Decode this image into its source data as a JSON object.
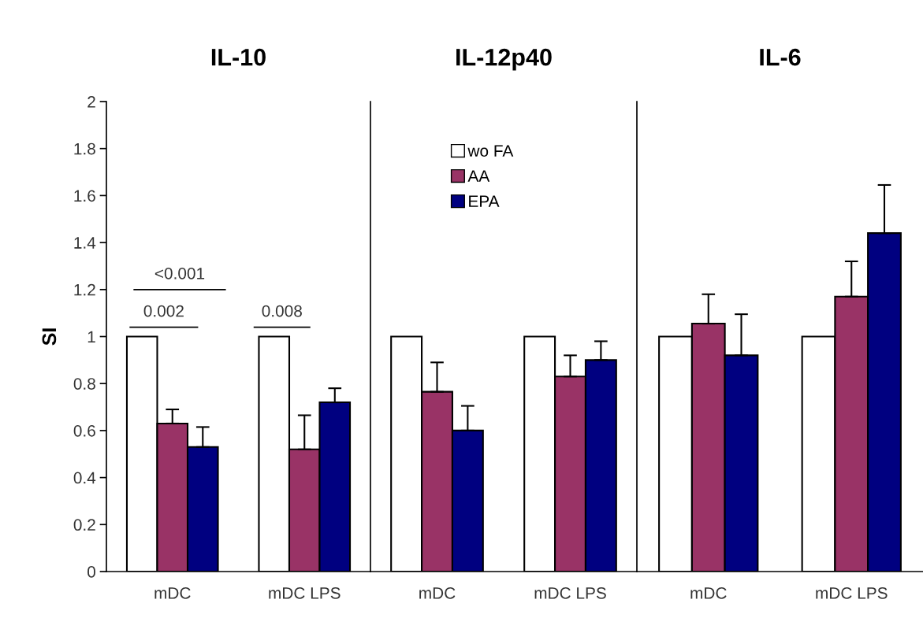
{
  "chart_data": [
    {
      "type": "bar",
      "title": "IL-10",
      "ylabel": "SI",
      "categories": [
        "mDC",
        "mDC LPS"
      ],
      "series": [
        {
          "color": "#ffffff",
          "values": [
            1,
            1
          ],
          "errors": [
            null,
            null
          ]
        },
        {
          "color": "#993366",
          "values": [
            0.63,
            0.52
          ],
          "errors": [
            [
              0.63,
              0.69
            ],
            [
              0.52,
              0.665
            ]
          ]
        },
        {
          "color": "#000080",
          "values": [
            0.53,
            0.72
          ],
          "errors": [
            [
              0.53,
              0.615
            ],
            [
              0.72,
              0.78
            ]
          ]
        }
      ],
      "ylim": [
        0,
        2
      ],
      "yticks": [
        0,
        0.2,
        0.4,
        0.6,
        0.8,
        1,
        1.2,
        1.4,
        1.6,
        1.8,
        2
      ],
      "annotations": [
        "<0.001",
        "0.002",
        "0.008"
      ]
    },
    {
      "type": "bar",
      "title": "IL-12p40",
      "categories": [
        "mDC",
        "mDC LPS"
      ],
      "series": [
        {
          "name": "wo FA",
          "color": "#ffffff",
          "values": [
            1,
            1
          ],
          "errors": [
            null,
            null
          ]
        },
        {
          "name": "AA",
          "color": "#993366",
          "values": [
            0.765,
            0.83
          ],
          "errors": [
            [
              0.765,
              0.89
            ],
            [
              0.83,
              0.92
            ]
          ]
        },
        {
          "name": "EPA",
          "color": "#000080",
          "values": [
            0.6,
            0.9
          ],
          "errors": [
            [
              0.6,
              0.705
            ],
            [
              0.9,
              0.98
            ]
          ]
        }
      ],
      "ylim": [
        0,
        2
      ],
      "tick_labels": "x",
      "legend": "top"
    },
    {
      "type": "bar",
      "title": "IL-6",
      "categories": [
        "mDC",
        "mDC LPS"
      ],
      "series": [
        {
          "color": "#ffffff",
          "values": [
            1,
            1
          ],
          "errors": [
            null,
            null
          ]
        },
        {
          "color": "#993366",
          "values": [
            1.055,
            1.17
          ],
          "errors": [
            [
              1.055,
              1.18
            ],
            [
              1.17,
              1.32
            ]
          ]
        },
        {
          "color": "#000080",
          "values": [
            0.92,
            1.44
          ],
          "errors": [
            [
              0.92,
              1.095
            ],
            [
              1.44,
              1.645
            ]
          ]
        }
      ],
      "ylim": [
        0,
        2
      ],
      "tick_labels": "x"
    }
  ]
}
